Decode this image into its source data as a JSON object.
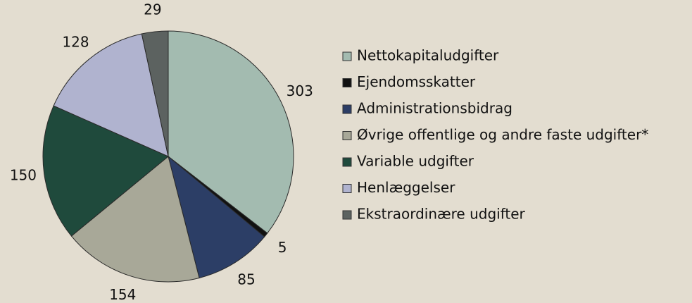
{
  "chart_data": {
    "type": "pie",
    "categories": [
      "Nettokapitaludgifter",
      "Ejendomsskatter",
      "Administrationsbidrag",
      "Øvrige offentlige og andre faste udgifter*",
      "Variable udgifter",
      "Henlæggelser",
      "Ekstraordinære udgifter"
    ],
    "values": [
      303,
      5,
      85,
      154,
      150,
      128,
      29
    ],
    "colors": [
      "#a3bbb0",
      "#111111",
      "#2c3e66",
      "#a8a898",
      "#1f4a3c",
      "#b0b3cf",
      "#5c6260"
    ],
    "legend": "right"
  }
}
